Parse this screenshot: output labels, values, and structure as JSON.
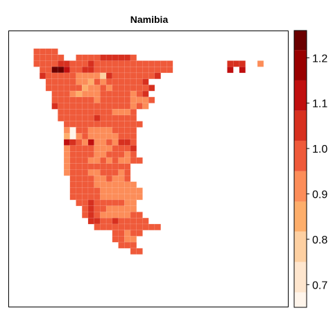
{
  "title": "Namibia",
  "legend": {
    "ticks": [
      "0.7",
      "0.8",
      "0.9",
      "1.0",
      "1.1",
      "1.2"
    ],
    "tick_values": [
      0.7,
      0.8,
      0.9,
      1.0,
      1.1,
      1.2
    ],
    "range": [
      0.65,
      1.26
    ],
    "breaks": [
      0.65,
      0.683,
      0.75,
      0.817,
      0.883,
      0.95,
      1.017,
      1.083,
      1.15,
      1.217,
      1.26
    ],
    "colors": [
      "#fff5eb",
      "#fee6ce",
      "#fdd0a2",
      "#fdae6b",
      "#fc8d59",
      "#ef5a3a",
      "#d7301f",
      "#c00f0f",
      "#990000",
      "#6b0000"
    ]
  },
  "map": {
    "color_key": {
      "0": "#fff5eb",
      "1": "#fee6ce",
      "2": "#fdd0a2",
      "3": "#fdae6b",
      "4": "#fc8d59",
      "5": "#ef5a3a",
      "6": "#d7301f",
      "7": "#c00f0f",
      "8": "#990000",
      "9": "#6b0000"
    },
    "rows": [
      "..5555..........................................",
      "..55555..5555666665.............................",
      "..55556655565555555555555.........666..4........",
      "...5599755665555555555555.........7.7...........",
      "...65555544442655555556.........................",
      "....55555443545555556...........................",
      "....555555344545555556..........................",
      ".....5554344455555456...........................",
      ".....55555554555554445..........................",
      ".....6555555555555454...........................",
      "......5555555554445.............................",
      "......5555556555555.............................",
      ".......5555555555555............................",
      ".......405544445555.............................",
      ".......304544444555.............................",
      ".......765474454665.............................",
      ".......455554445556.............................",
      ".......455554455545.............................",
      ".......4555445454455............................",
      ".......45555555555..............................",
      ".......45554455545..............................",
      "........5555445445..............................",
      "........55554444444.............................",
      "........555554444444............................",
      "........555554444444............................",
      ".........5565555544.............................",
      "..........565544444.............................",
      "..........5654444455............................",
      "...........6655655555...........................",
      "............55555555555.........................",
      "...............55455............................",
      "...............5544.............................",
      "................555.............................",
      "..................55............................"
    ]
  }
}
